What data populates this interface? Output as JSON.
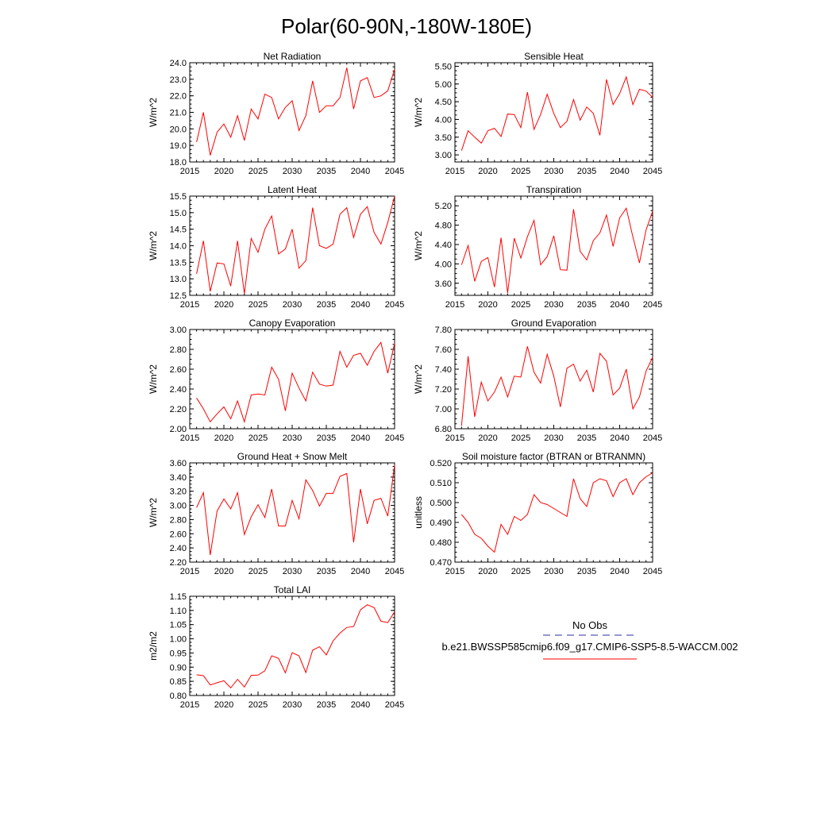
{
  "figure_title": "Polar(60-90N,-180W-180E)",
  "colors": {
    "series": "#ff0000",
    "obs": "#2c2ca0",
    "axis": "#000000"
  },
  "legend": {
    "obs_label": "No Obs",
    "case_label": "b.e21.BWSSP585cmip6.f09_g17.CMIP6-SSP5-8.5-WACCM.002"
  },
  "chart_data": [
    {
      "type": "line",
      "title": "Net Radiation",
      "ylabel": "W/m^2",
      "xlabel": "",
      "xlim": [
        2015,
        2045
      ],
      "ylim": [
        18.0,
        24.0
      ],
      "xticks": [
        2015,
        2020,
        2025,
        2030,
        2035,
        2040,
        2045
      ],
      "yticks": [
        18.0,
        19.0,
        20.0,
        21.0,
        22.0,
        23.0,
        24.0
      ],
      "ydec": 1,
      "x": [
        2016,
        2017,
        2018,
        2019,
        2020,
        2021,
        2022,
        2023,
        2024,
        2025,
        2026,
        2027,
        2028,
        2029,
        2030,
        2031,
        2032,
        2033,
        2034,
        2035,
        2036,
        2037,
        2038,
        2039,
        2040,
        2041,
        2042,
        2043,
        2044,
        2045
      ],
      "series": [
        {
          "name": "b.e21.BWSSP585cmip6.f09_g17.CMIP6-SSP5-8.5-WACCM.002",
          "values": [
            19.2,
            21.0,
            18.4,
            19.8,
            20.3,
            19.5,
            20.8,
            19.3,
            21.2,
            20.6,
            22.1,
            21.9,
            20.6,
            21.3,
            21.7,
            19.9,
            20.8,
            22.9,
            21.0,
            21.4,
            21.4,
            21.9,
            23.7,
            21.2,
            22.9,
            23.1,
            21.9,
            22.0,
            22.3,
            23.6
          ]
        }
      ]
    },
    {
      "type": "line",
      "title": "Sensible Heat",
      "ylabel": "W/m^2",
      "xlabel": "",
      "xlim": [
        2015,
        2045
      ],
      "ylim": [
        2.8,
        5.6
      ],
      "xticks": [
        2015,
        2020,
        2025,
        2030,
        2035,
        2040,
        2045
      ],
      "yticks": [
        3.0,
        3.5,
        4.0,
        4.5,
        5.0,
        5.5
      ],
      "ydec": 2,
      "x": [
        2016,
        2017,
        2018,
        2019,
        2020,
        2021,
        2022,
        2023,
        2024,
        2025,
        2026,
        2027,
        2028,
        2029,
        2030,
        2031,
        2032,
        2033,
        2034,
        2035,
        2036,
        2037,
        2038,
        2039,
        2040,
        2041,
        2042,
        2043,
        2044,
        2045
      ],
      "series": [
        {
          "name": "b.e21.BWSSP585cmip6.f09_g17.CMIP6-SSP5-8.5-WACCM.002",
          "values": [
            3.12,
            3.68,
            3.5,
            3.33,
            3.68,
            3.75,
            3.52,
            4.15,
            4.14,
            3.77,
            4.77,
            3.72,
            4.14,
            4.71,
            4.17,
            3.77,
            3.95,
            4.56,
            3.98,
            4.35,
            4.17,
            3.55,
            5.13,
            4.42,
            4.73,
            5.2,
            4.42,
            4.85,
            4.8,
            4.62
          ]
        }
      ]
    },
    {
      "type": "line",
      "title": "Latent Heat",
      "ylabel": "W/m^2",
      "xlabel": "",
      "xlim": [
        2015,
        2045
      ],
      "ylim": [
        12.5,
        15.5
      ],
      "xticks": [
        2015,
        2020,
        2025,
        2030,
        2035,
        2040,
        2045
      ],
      "yticks": [
        12.5,
        13.0,
        13.5,
        14.0,
        14.5,
        15.0,
        15.5
      ],
      "ydec": 1,
      "x": [
        2016,
        2017,
        2018,
        2019,
        2020,
        2021,
        2022,
        2023,
        2024,
        2025,
        2026,
        2027,
        2028,
        2029,
        2030,
        2031,
        2032,
        2033,
        2034,
        2035,
        2036,
        2037,
        2038,
        2039,
        2040,
        2041,
        2042,
        2043,
        2044,
        2045
      ],
      "series": [
        {
          "name": "b.e21.BWSSP585cmip6.f09_g17.CMIP6-SSP5-8.5-WACCM.002",
          "values": [
            13.15,
            14.15,
            12.62,
            13.48,
            13.45,
            12.78,
            14.15,
            12.55,
            14.22,
            13.8,
            14.5,
            14.9,
            13.75,
            13.9,
            14.5,
            13.32,
            13.55,
            15.15,
            14.0,
            13.92,
            14.05,
            14.95,
            15.15,
            14.25,
            14.95,
            15.18,
            14.4,
            14.05,
            14.7,
            15.5
          ]
        }
      ]
    },
    {
      "type": "line",
      "title": "Transpiration",
      "ylabel": "W/m^2",
      "xlabel": "",
      "xlim": [
        2015,
        2045
      ],
      "ylim": [
        3.35,
        5.4
      ],
      "xticks": [
        2015,
        2020,
        2025,
        2030,
        2035,
        2040,
        2045
      ],
      "yticks": [
        3.6,
        4.0,
        4.4,
        4.8,
        5.2
      ],
      "ydec": 2,
      "x": [
        2016,
        2017,
        2018,
        2019,
        2020,
        2021,
        2022,
        2023,
        2024,
        2025,
        2026,
        2027,
        2028,
        2029,
        2030,
        2031,
        2032,
        2033,
        2034,
        2035,
        2036,
        2037,
        2038,
        2039,
        2040,
        2041,
        2042,
        2043,
        2044,
        2045
      ],
      "series": [
        {
          "name": "b.e21.BWSSP585cmip6.f09_g17.CMIP6-SSP5-8.5-WACCM.002",
          "values": [
            3.98,
            4.38,
            3.64,
            4.05,
            4.13,
            3.52,
            4.54,
            3.4,
            4.53,
            4.12,
            4.56,
            4.9,
            3.98,
            4.15,
            4.58,
            3.88,
            3.87,
            5.13,
            4.26,
            4.08,
            4.48,
            4.64,
            5.01,
            4.36,
            4.95,
            5.15,
            4.56,
            4.02,
            4.7,
            5.09
          ]
        }
      ]
    },
    {
      "type": "line",
      "title": "Canopy Evaporation",
      "ylabel": "W/m^2",
      "xlabel": "",
      "xlim": [
        2015,
        2045
      ],
      "ylim": [
        2.0,
        3.0
      ],
      "xticks": [
        2015,
        2020,
        2025,
        2030,
        2035,
        2040,
        2045
      ],
      "yticks": [
        2.0,
        2.2,
        2.4,
        2.6,
        2.8,
        3.0
      ],
      "ydec": 2,
      "x": [
        2016,
        2017,
        2018,
        2019,
        2020,
        2021,
        2022,
        2023,
        2024,
        2025,
        2026,
        2027,
        2028,
        2029,
        2030,
        2031,
        2032,
        2033,
        2034,
        2035,
        2036,
        2037,
        2038,
        2039,
        2040,
        2041,
        2042,
        2043,
        2044,
        2045
      ],
      "series": [
        {
          "name": "b.e21.BWSSP585cmip6.f09_g17.CMIP6-SSP5-8.5-WACCM.002",
          "values": [
            2.31,
            2.2,
            2.07,
            2.15,
            2.22,
            2.1,
            2.28,
            2.07,
            2.34,
            2.35,
            2.34,
            2.62,
            2.5,
            2.18,
            2.56,
            2.41,
            2.28,
            2.57,
            2.45,
            2.43,
            2.44,
            2.78,
            2.62,
            2.74,
            2.76,
            2.64,
            2.78,
            2.87,
            2.56,
            2.86
          ]
        }
      ]
    },
    {
      "type": "line",
      "title": "Ground Evaporation",
      "ylabel": "W/m^2",
      "xlabel": "",
      "xlim": [
        2015,
        2045
      ],
      "ylim": [
        6.8,
        7.8
      ],
      "xticks": [
        2015,
        2020,
        2025,
        2030,
        2035,
        2040,
        2045
      ],
      "yticks": [
        6.8,
        7.0,
        7.2,
        7.4,
        7.6,
        7.8
      ],
      "ydec": 2,
      "x": [
        2016,
        2017,
        2018,
        2019,
        2020,
        2021,
        2022,
        2023,
        2024,
        2025,
        2026,
        2027,
        2028,
        2029,
        2030,
        2031,
        2032,
        2033,
        2034,
        2035,
        2036,
        2037,
        2038,
        2039,
        2040,
        2041,
        2042,
        2043,
        2044,
        2045
      ],
      "series": [
        {
          "name": "b.e21.BWSSP585cmip6.f09_g17.CMIP6-SSP5-8.5-WACCM.002",
          "values": [
            6.83,
            7.53,
            6.92,
            7.27,
            7.08,
            7.17,
            7.32,
            7.12,
            7.33,
            7.32,
            7.63,
            7.37,
            7.26,
            7.55,
            7.33,
            7.02,
            7.41,
            7.45,
            7.28,
            7.39,
            7.17,
            7.56,
            7.48,
            7.14,
            7.21,
            7.4,
            7.0,
            7.12,
            7.38,
            7.52
          ]
        }
      ]
    },
    {
      "type": "line",
      "title": "Ground Heat + Snow Melt",
      "ylabel": "W/m^2",
      "xlabel": "",
      "xlim": [
        2015,
        2045
      ],
      "ylim": [
        2.2,
        3.6
      ],
      "xticks": [
        2015,
        2020,
        2025,
        2030,
        2035,
        2040,
        2045
      ],
      "yticks": [
        2.2,
        2.4,
        2.6,
        2.8,
        3.0,
        3.2,
        3.4,
        3.6
      ],
      "ydec": 2,
      "x": [
        2016,
        2017,
        2018,
        2019,
        2020,
        2021,
        2022,
        2023,
        2024,
        2025,
        2026,
        2027,
        2028,
        2029,
        2030,
        2031,
        2032,
        2033,
        2034,
        2035,
        2036,
        2037,
        2038,
        2039,
        2040,
        2041,
        2042,
        2043,
        2044,
        2045
      ],
      "series": [
        {
          "name": "b.e21.BWSSP585cmip6.f09_g17.CMIP6-SSP5-8.5-WACCM.002",
          "values": [
            2.97,
            3.18,
            2.3,
            2.92,
            3.09,
            2.95,
            3.18,
            2.59,
            2.84,
            3.01,
            2.83,
            3.23,
            2.71,
            2.71,
            3.07,
            2.81,
            3.36,
            3.21,
            2.99,
            3.17,
            3.17,
            3.41,
            3.45,
            2.48,
            3.23,
            2.74,
            3.07,
            3.1,
            2.85,
            3.57
          ]
        }
      ]
    },
    {
      "type": "line",
      "title": "Soil moisture factor (BTRAN or BTRANMN)",
      "ylabel": "unitless",
      "xlabel": "",
      "xlim": [
        2015,
        2045
      ],
      "ylim": [
        0.47,
        0.52
      ],
      "xticks": [
        2015,
        2020,
        2025,
        2030,
        2035,
        2040,
        2045
      ],
      "yticks": [
        0.47,
        0.48,
        0.49,
        0.5,
        0.51,
        0.52
      ],
      "ydec": 3,
      "x": [
        2016,
        2017,
        2018,
        2019,
        2020,
        2021,
        2022,
        2023,
        2024,
        2025,
        2026,
        2027,
        2028,
        2029,
        2030,
        2031,
        2032,
        2033,
        2034,
        2035,
        2036,
        2037,
        2038,
        2039,
        2040,
        2041,
        2042,
        2043,
        2044,
        2045
      ],
      "series": [
        {
          "name": "b.e21.BWSSP585cmip6.f09_g17.CMIP6-SSP5-8.5-WACCM.002",
          "values": [
            0.494,
            0.49,
            0.484,
            0.482,
            0.478,
            0.475,
            0.489,
            0.484,
            0.493,
            0.491,
            0.494,
            0.504,
            0.5,
            0.499,
            0.497,
            0.495,
            0.493,
            0.512,
            0.502,
            0.498,
            0.51,
            0.512,
            0.511,
            0.503,
            0.51,
            0.512,
            0.504,
            0.51,
            0.513,
            0.515
          ]
        }
      ]
    },
    {
      "type": "line",
      "title": "Total LAI",
      "ylabel": "m2/m2",
      "xlabel": "",
      "xlim": [
        2015,
        2045
      ],
      "ylim": [
        0.8,
        1.15
      ],
      "xticks": [
        2015,
        2020,
        2025,
        2030,
        2035,
        2040,
        2045
      ],
      "yticks": [
        0.8,
        0.85,
        0.9,
        0.95,
        1.0,
        1.05,
        1.1,
        1.15
      ],
      "ydec": 2,
      "x": [
        2016,
        2017,
        2018,
        2019,
        2020,
        2021,
        2022,
        2023,
        2024,
        2025,
        2026,
        2027,
        2028,
        2029,
        2030,
        2031,
        2032,
        2033,
        2034,
        2035,
        2036,
        2037,
        2038,
        2039,
        2040,
        2041,
        2042,
        2043,
        2044,
        2045
      ],
      "series": [
        {
          "name": "b.e21.BWSSP585cmip6.f09_g17.CMIP6-SSP5-8.5-WACCM.002",
          "values": [
            0.873,
            0.87,
            0.837,
            0.845,
            0.852,
            0.827,
            0.857,
            0.83,
            0.871,
            0.872,
            0.887,
            0.94,
            0.931,
            0.88,
            0.951,
            0.94,
            0.881,
            0.96,
            0.972,
            0.943,
            0.993,
            1.02,
            1.04,
            1.043,
            1.102,
            1.12,
            1.11,
            1.062,
            1.057,
            1.095
          ]
        }
      ]
    }
  ]
}
